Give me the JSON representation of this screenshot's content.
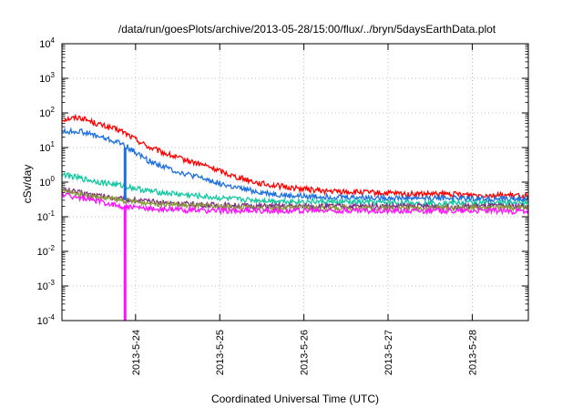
{
  "chart_data": {
    "type": "line",
    "title": "/data/run/goesPlots/archive/2013-05-28/15:00/flux/../bryn/5daysEarthData.plot",
    "xlabel": "Coordinated Universal Time (UTC)",
    "ylabel": "cSv/day",
    "xlim": [
      "2013-05-23 03:00",
      "2013-05-28 16:00"
    ],
    "ylim": [
      0.0001,
      10000
    ],
    "yscale": "log",
    "grid": true,
    "xticks": [
      "2013-5-24",
      "2013-5-25",
      "2013-5-26",
      "2013-5-27",
      "2013-5-28"
    ],
    "ytick_base": "10",
    "ytick_exponents": [
      "4",
      "3",
      "2",
      "1",
      "0",
      "-1",
      "-2",
      "-3",
      "-4"
    ],
    "series": [
      {
        "color": "#ff0000",
        "x": [
          "2013-05-23 03:00",
          "2013-05-23 08:00",
          "2013-05-23 14:00",
          "2013-05-23 20:00",
          "2013-05-24 04:00",
          "2013-05-24 12:00",
          "2013-05-24 20:00",
          "2013-05-25 04:00",
          "2013-05-25 12:00",
          "2013-05-25 20:00",
          "2013-05-26 06:00",
          "2013-05-26 18:00",
          "2013-05-27 06:00",
          "2013-05-27 18:00",
          "2013-05-28 06:00",
          "2013-05-28 16:00"
        ],
        "y": [
          65,
          75,
          45,
          30,
          10,
          5,
          3,
          1.5,
          0.9,
          0.7,
          0.55,
          0.5,
          0.45,
          0.45,
          0.42,
          0.4
        ]
      },
      {
        "color": "#1e6fe0",
        "x": [
          "2013-05-23 03:00",
          "2013-05-23 08:00",
          "2013-05-23 14:00",
          "2013-05-23 20:00",
          "2013-05-24 04:00",
          "2013-05-24 12:00",
          "2013-05-24 20:00",
          "2013-05-25 04:00",
          "2013-05-25 12:00",
          "2013-05-25 20:00",
          "2013-05-26 06:00",
          "2013-05-26 18:00",
          "2013-05-27 06:00",
          "2013-05-27 18:00",
          "2013-05-28 06:00",
          "2013-05-28 16:00"
        ],
        "y": [
          28,
          30,
          20,
          13,
          4,
          2,
          1.2,
          0.7,
          0.5,
          0.4,
          0.38,
          0.36,
          0.35,
          0.35,
          0.33,
          0.32
        ]
      },
      {
        "color": "#10c8a0",
        "x": [
          "2013-05-23 03:00",
          "2013-05-23 08:00",
          "2013-05-23 14:00",
          "2013-05-23 20:00",
          "2013-05-24 04:00",
          "2013-05-24 12:00",
          "2013-05-24 20:00",
          "2013-05-25 04:00",
          "2013-05-25 12:00",
          "2013-05-25 20:00",
          "2013-05-26 06:00",
          "2013-05-26 18:00",
          "2013-05-27 06:00",
          "2013-05-27 18:00",
          "2013-05-28 06:00",
          "2013-05-28 16:00"
        ],
        "y": [
          1.7,
          1.3,
          1.0,
          0.8,
          0.55,
          0.45,
          0.38,
          0.32,
          0.3,
          0.28,
          0.27,
          0.26,
          0.25,
          0.25,
          0.25,
          0.25
        ]
      },
      {
        "color": "#7d2a8a",
        "x": [
          "2013-05-23 03:00",
          "2013-05-23 08:00",
          "2013-05-23 14:00",
          "2013-05-23 20:00",
          "2013-05-24 04:00",
          "2013-05-24 12:00",
          "2013-05-24 20:00",
          "2013-05-25 04:00",
          "2013-05-25 12:00",
          "2013-05-25 20:00",
          "2013-05-26 06:00",
          "2013-05-26 18:00",
          "2013-05-27 06:00",
          "2013-05-27 18:00",
          "2013-05-28 06:00",
          "2013-05-28 16:00"
        ],
        "y": [
          0.6,
          0.5,
          0.4,
          0.33,
          0.27,
          0.24,
          0.22,
          0.21,
          0.2,
          0.2,
          0.2,
          0.2,
          0.2,
          0.2,
          0.2,
          0.2
        ]
      },
      {
        "color": "#8a9a3a",
        "x": [
          "2013-05-23 03:00",
          "2013-05-23 08:00",
          "2013-05-23 14:00",
          "2013-05-23 20:00",
          "2013-05-24 04:00",
          "2013-05-24 12:00",
          "2013-05-24 20:00",
          "2013-05-25 04:00",
          "2013-05-25 12:00",
          "2013-05-25 20:00",
          "2013-05-26 06:00",
          "2013-05-26 18:00",
          "2013-05-27 06:00",
          "2013-05-27 18:00",
          "2013-05-28 06:00",
          "2013-05-28 16:00"
        ],
        "y": [
          0.55,
          0.45,
          0.36,
          0.3,
          0.25,
          0.22,
          0.2,
          0.19,
          0.18,
          0.18,
          0.18,
          0.18,
          0.18,
          0.18,
          0.18,
          0.18
        ]
      },
      {
        "color": "#ff10ff",
        "x": [
          "2013-05-23 03:00",
          "2013-05-23 08:00",
          "2013-05-23 14:00",
          "2013-05-23 20:00",
          "2013-05-24 04:00",
          "2013-05-24 12:00",
          "2013-05-24 20:00",
          "2013-05-25 04:00",
          "2013-05-25 12:00",
          "2013-05-25 20:00",
          "2013-05-26 06:00",
          "2013-05-26 18:00",
          "2013-05-27 06:00",
          "2013-05-27 18:00",
          "2013-05-28 06:00",
          "2013-05-28 16:00"
        ],
        "y": [
          0.45,
          0.35,
          0.27,
          0.2,
          0.17,
          0.16,
          0.15,
          0.15,
          0.15,
          0.15,
          0.15,
          0.15,
          0.15,
          0.15,
          0.15,
          0.14
        ]
      }
    ],
    "annotations": [
      {
        "series_color": "#1e6fe0",
        "x": "2013-05-23 21:00",
        "y_from": 0.3,
        "y_to": 10
      },
      {
        "series_color": "#ff10ff",
        "x": "2013-05-23 21:00",
        "y_from": 0.0001,
        "y_to": 0.2
      }
    ]
  }
}
